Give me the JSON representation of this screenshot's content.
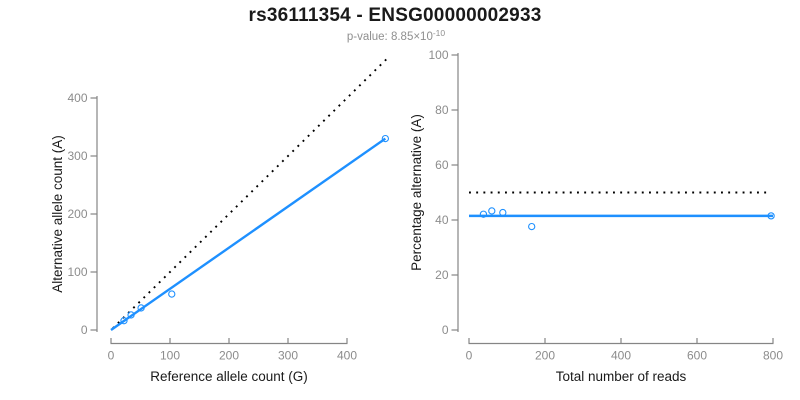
{
  "header": {
    "title": "rs36111354 - ENSG00000002933",
    "subtitle_label": "p-value: 8.85×10",
    "subtitle_exponent": "-10"
  },
  "colors": {
    "fit_line": "#1E90FF",
    "point_stroke": "#1E90FF",
    "identity_line": "#000000",
    "axis": "#858585",
    "tick_label": "#8c8c8c",
    "axis_title": "#1a1a1a"
  },
  "chart_data": [
    {
      "type": "scatter",
      "name": "allele-counts",
      "xlabel": "Reference allele count (G)",
      "ylabel": "Alternative allele count (A)",
      "xlim": [
        0,
        400
      ],
      "ylim": [
        0,
        400
      ],
      "xticks": [
        0,
        100,
        200,
        300,
        400
      ],
      "yticks": [
        0,
        100,
        200,
        300,
        400
      ],
      "points": [
        [
          22,
          16
        ],
        [
          34,
          26
        ],
        [
          51,
          38
        ],
        [
          103,
          62
        ],
        [
          465,
          330
        ]
      ],
      "lines": [
        {
          "name": "identity-line",
          "style": "dotted",
          "from": [
            3,
            3
          ],
          "to": [
            472,
            472
          ]
        },
        {
          "name": "fit-line",
          "style": "solid",
          "from": [
            0,
            0
          ],
          "to": [
            465,
            330
          ]
        }
      ]
    },
    {
      "type": "scatter",
      "name": "percentage-vs-reads",
      "xlabel": "Total number of reads",
      "ylabel": "Percentage alternative (A)",
      "xlim": [
        0,
        800
      ],
      "ylim": [
        0,
        100
      ],
      "xticks": [
        0,
        200,
        400,
        600,
        800
      ],
      "yticks": [
        0,
        20,
        40,
        60,
        80,
        100
      ],
      "points": [
        [
          38,
          42.1
        ],
        [
          60,
          43.3
        ],
        [
          89,
          42.7
        ],
        [
          165,
          37.6
        ],
        [
          795,
          41.5
        ]
      ],
      "lines": [
        {
          "name": "expected-50pct-line",
          "style": "dotted",
          "from": [
            0,
            50
          ],
          "to": [
            790,
            50
          ]
        },
        {
          "name": "fit-line",
          "style": "solid",
          "from": [
            0,
            41.5
          ],
          "to": [
            800,
            41.5
          ]
        }
      ]
    }
  ]
}
